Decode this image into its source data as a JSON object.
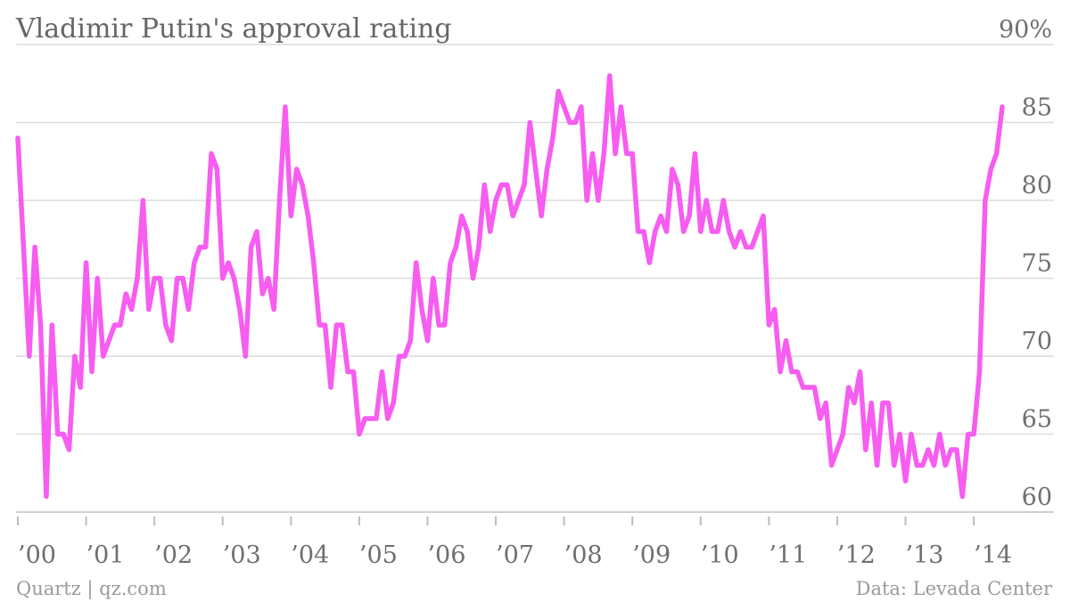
{
  "chart_data": {
    "type": "line",
    "title": "Vladimir Putin's approval rating",
    "ylim": [
      58,
      90
    ],
    "y_ticks": [
      {
        "value": 90,
        "label": "90%"
      },
      {
        "value": 85,
        "label": "85"
      },
      {
        "value": 80,
        "label": "80"
      },
      {
        "value": 75,
        "label": "75"
      },
      {
        "value": 70,
        "label": "70"
      },
      {
        "value": 65,
        "label": "65"
      },
      {
        "value": 60,
        "label": "60"
      }
    ],
    "x_ticks": [
      {
        "year": 2000,
        "label": "’00"
      },
      {
        "year": 2001,
        "label": "’01"
      },
      {
        "year": 2002,
        "label": "’02"
      },
      {
        "year": 2003,
        "label": "’03"
      },
      {
        "year": 2004,
        "label": "’04"
      },
      {
        "year": 2005,
        "label": "’05"
      },
      {
        "year": 2006,
        "label": "’06"
      },
      {
        "year": 2007,
        "label": "’07"
      },
      {
        "year": 2008,
        "label": "’08"
      },
      {
        "year": 2009,
        "label": "’09"
      },
      {
        "year": 2010,
        "label": "’10"
      },
      {
        "year": 2011,
        "label": "’11"
      },
      {
        "year": 2012,
        "label": "’12"
      },
      {
        "year": 2013,
        "label": "’13"
      },
      {
        "year": 2014,
        "label": "’14"
      }
    ],
    "grid": true,
    "series": [
      {
        "color": "#f65df0",
        "points": [
          [
            "2000-01",
            84
          ],
          [
            "2000-03",
            70
          ],
          [
            "2000-04",
            77
          ],
          [
            "2000-05",
            72
          ],
          [
            "2000-06",
            61
          ],
          [
            "2000-07",
            72
          ],
          [
            "2000-08",
            65
          ],
          [
            "2000-09",
            65
          ],
          [
            "2000-10",
            64
          ],
          [
            "2000-11",
            70
          ],
          [
            "2000-12",
            68
          ],
          [
            "2001-01",
            76
          ],
          [
            "2001-02",
            69
          ],
          [
            "2001-03",
            75
          ],
          [
            "2001-04",
            70
          ],
          [
            "2001-05",
            71
          ],
          [
            "2001-06",
            72
          ],
          [
            "2001-07",
            72
          ],
          [
            "2001-08",
            74
          ],
          [
            "2001-09",
            73
          ],
          [
            "2001-10",
            75
          ],
          [
            "2001-11",
            80
          ],
          [
            "2001-12",
            73
          ],
          [
            "2002-01",
            75
          ],
          [
            "2002-02",
            75
          ],
          [
            "2002-03",
            72
          ],
          [
            "2002-04",
            71
          ],
          [
            "2002-05",
            75
          ],
          [
            "2002-06",
            75
          ],
          [
            "2002-07",
            73
          ],
          [
            "2002-08",
            76
          ],
          [
            "2002-09",
            77
          ],
          [
            "2002-10",
            77
          ],
          [
            "2002-11",
            83
          ],
          [
            "2002-12",
            82
          ],
          [
            "2003-01",
            75
          ],
          [
            "2003-02",
            76
          ],
          [
            "2003-03",
            75
          ],
          [
            "2003-04",
            73
          ],
          [
            "2003-05",
            70
          ],
          [
            "2003-06",
            77
          ],
          [
            "2003-07",
            78
          ],
          [
            "2003-08",
            74
          ],
          [
            "2003-09",
            75
          ],
          [
            "2003-10",
            73
          ],
          [
            "2003-11",
            80
          ],
          [
            "2003-12",
            86
          ],
          [
            "2004-01",
            79
          ],
          [
            "2004-02",
            82
          ],
          [
            "2004-03",
            81
          ],
          [
            "2004-04",
            79
          ],
          [
            "2004-05",
            76
          ],
          [
            "2004-06",
            72
          ],
          [
            "2004-07",
            72
          ],
          [
            "2004-08",
            68
          ],
          [
            "2004-09",
            72
          ],
          [
            "2004-10",
            72
          ],
          [
            "2004-11",
            69
          ],
          [
            "2004-12",
            69
          ],
          [
            "2005-01",
            65
          ],
          [
            "2005-02",
            66
          ],
          [
            "2005-03",
            66
          ],
          [
            "2005-04",
            66
          ],
          [
            "2005-05",
            69
          ],
          [
            "2005-06",
            66
          ],
          [
            "2005-07",
            67
          ],
          [
            "2005-08",
            70
          ],
          [
            "2005-09",
            70
          ],
          [
            "2005-10",
            71
          ],
          [
            "2005-11",
            76
          ],
          [
            "2005-12",
            73
          ],
          [
            "2006-01",
            71
          ],
          [
            "2006-02",
            75
          ],
          [
            "2006-03",
            72
          ],
          [
            "2006-04",
            72
          ],
          [
            "2006-05",
            76
          ],
          [
            "2006-06",
            77
          ],
          [
            "2006-07",
            79
          ],
          [
            "2006-08",
            78
          ],
          [
            "2006-09",
            75
          ],
          [
            "2006-10",
            77
          ],
          [
            "2006-11",
            81
          ],
          [
            "2006-12",
            78
          ],
          [
            "2007-01",
            80
          ],
          [
            "2007-02",
            81
          ],
          [
            "2007-03",
            81
          ],
          [
            "2007-04",
            79
          ],
          [
            "2007-05",
            80
          ],
          [
            "2007-06",
            81
          ],
          [
            "2007-07",
            85
          ],
          [
            "2007-08",
            82
          ],
          [
            "2007-09",
            79
          ],
          [
            "2007-10",
            82
          ],
          [
            "2007-11",
            84
          ],
          [
            "2007-12",
            87
          ],
          [
            "2008-01",
            86
          ],
          [
            "2008-02",
            85
          ],
          [
            "2008-03",
            85
          ],
          [
            "2008-04",
            86
          ],
          [
            "2008-05",
            80
          ],
          [
            "2008-06",
            83
          ],
          [
            "2008-07",
            80
          ],
          [
            "2008-08",
            83
          ],
          [
            "2008-09",
            88
          ],
          [
            "2008-10",
            83
          ],
          [
            "2008-11",
            86
          ],
          [
            "2008-12",
            83
          ],
          [
            "2009-01",
            83
          ],
          [
            "2009-02",
            78
          ],
          [
            "2009-03",
            78
          ],
          [
            "2009-04",
            76
          ],
          [
            "2009-05",
            78
          ],
          [
            "2009-06",
            79
          ],
          [
            "2009-07",
            78
          ],
          [
            "2009-08",
            82
          ],
          [
            "2009-09",
            81
          ],
          [
            "2009-10",
            78
          ],
          [
            "2009-11",
            79
          ],
          [
            "2009-12",
            83
          ],
          [
            "2010-01",
            78
          ],
          [
            "2010-02",
            80
          ],
          [
            "2010-03",
            78
          ],
          [
            "2010-04",
            78
          ],
          [
            "2010-05",
            80
          ],
          [
            "2010-06",
            78
          ],
          [
            "2010-07",
            77
          ],
          [
            "2010-08",
            78
          ],
          [
            "2010-09",
            77
          ],
          [
            "2010-10",
            77
          ],
          [
            "2010-11",
            78
          ],
          [
            "2010-12",
            79
          ],
          [
            "2011-01",
            72
          ],
          [
            "2011-02",
            73
          ],
          [
            "2011-03",
            69
          ],
          [
            "2011-04",
            71
          ],
          [
            "2011-05",
            69
          ],
          [
            "2011-06",
            69
          ],
          [
            "2011-07",
            68
          ],
          [
            "2011-08",
            68
          ],
          [
            "2011-09",
            68
          ],
          [
            "2011-10",
            66
          ],
          [
            "2011-11",
            67
          ],
          [
            "2011-12",
            63
          ],
          [
            "2012-01",
            64
          ],
          [
            "2012-02",
            65
          ],
          [
            "2012-03",
            68
          ],
          [
            "2012-04",
            67
          ],
          [
            "2012-05",
            69
          ],
          [
            "2012-06",
            64
          ],
          [
            "2012-07",
            67
          ],
          [
            "2012-08",
            63
          ],
          [
            "2012-09",
            67
          ],
          [
            "2012-10",
            67
          ],
          [
            "2012-11",
            63
          ],
          [
            "2012-12",
            65
          ],
          [
            "2013-01",
            62
          ],
          [
            "2013-02",
            65
          ],
          [
            "2013-03",
            63
          ],
          [
            "2013-04",
            63
          ],
          [
            "2013-05",
            64
          ],
          [
            "2013-06",
            63
          ],
          [
            "2013-07",
            65
          ],
          [
            "2013-08",
            63
          ],
          [
            "2013-09",
            64
          ],
          [
            "2013-10",
            64
          ],
          [
            "2013-11",
            61
          ],
          [
            "2013-12",
            65
          ],
          [
            "2014-01",
            65
          ],
          [
            "2014-02",
            69
          ],
          [
            "2014-03",
            80
          ],
          [
            "2014-04",
            82
          ],
          [
            "2014-05",
            83
          ],
          [
            "2014-06",
            86
          ]
        ]
      }
    ]
  },
  "footer": {
    "source_left": "Quartz | qz.com",
    "source_right": "Data: Levada Center"
  }
}
